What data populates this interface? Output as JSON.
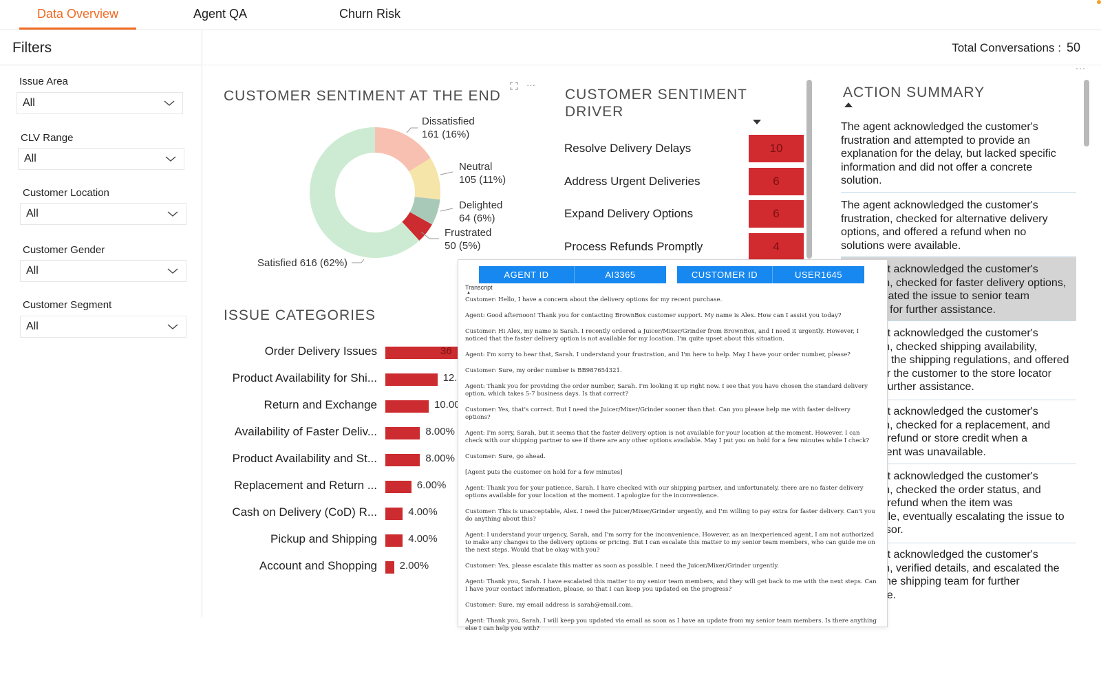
{
  "tabs": [
    {
      "label": "Data Overview",
      "active": true
    },
    {
      "label": "Agent QA",
      "active": false
    },
    {
      "label": "Churn Risk",
      "active": false
    }
  ],
  "filters": {
    "title": "Filters",
    "items": [
      {
        "label": "Issue Area",
        "value": "All"
      },
      {
        "label": "CLV Range",
        "value": "All"
      },
      {
        "label": "Customer Location",
        "value": "All"
      },
      {
        "label": "Customer Gender",
        "value": "All"
      },
      {
        "label": "Customer Segment",
        "value": "All"
      }
    ]
  },
  "header": {
    "total_label": "Total Conversations :",
    "total_value": "50"
  },
  "sentiment": {
    "title": "CUSTOMER SENTIMENT AT THE END",
    "tools": [
      "expand-icon",
      "more-icon"
    ],
    "chart_data": {
      "type": "pie",
      "style": "donut",
      "categories": [
        "Satisfied",
        "Dissatisfied",
        "Neutral",
        "Delighted",
        "Frustrated"
      ],
      "values": [
        616,
        161,
        105,
        64,
        50
      ],
      "percents": [
        62,
        16,
        11,
        6,
        5
      ],
      "colors": [
        "#cdebd3",
        "#f8c0b0",
        "#f5e5a8",
        "#a9c9b8",
        "#cc2b2f"
      ],
      "labels": [
        {
          "name": "Satisfied",
          "text": "Satisfied 616 (62%)"
        },
        {
          "name": "Dissatisfied",
          "line1": "Dissatisfied",
          "line2": "161 (16%)"
        },
        {
          "name": "Neutral",
          "line1": "Neutral",
          "line2": "105 (11%)"
        },
        {
          "name": "Delighted",
          "line1": "Delighted",
          "line2": "64 (6%)"
        },
        {
          "name": "Frustrated",
          "line1": "Frustrated",
          "line2": "50 (5%)"
        }
      ]
    }
  },
  "issues": {
    "title": "ISSUE CATEGORIES",
    "chart_data": {
      "type": "bar",
      "orientation": "horizontal",
      "categories": [
        "Order Delivery Issues",
        "Product Availability for Shi...",
        "Return and Exchange",
        "Availability of Faster Deliv...",
        "Product Availability and St...",
        "Replacement and Return ...",
        "Cash on Delivery (CoD) R...",
        "Pickup and Shipping",
        "Account and Shopping"
      ],
      "values": [
        36,
        12,
        10,
        8,
        8,
        6,
        4,
        4,
        2
      ],
      "value_labels": [
        "36",
        "12.00%",
        "10.00%",
        "8.00%",
        "8.00%",
        "6.00%",
        "4.00%",
        "4.00%",
        "2.00%"
      ],
      "color": "#cc2b2f"
    }
  },
  "driver": {
    "title_line1": "CUSTOMER SENTIMENT",
    "title_line2": "DRIVER",
    "items": [
      {
        "label": "Resolve Delivery Delays",
        "value": "10"
      },
      {
        "label": "Address Urgent Deliveries",
        "value": "6"
      },
      {
        "label": "Expand Delivery Options",
        "value": "6"
      },
      {
        "label": "Process Refunds Promptly",
        "value": "4"
      }
    ]
  },
  "summary": {
    "title": "ACTION SUMMARY",
    "items": [
      "The agent acknowledged the customer's frustration and attempted to provide an explanation for the delay, but lacked specific information and did not offer a concrete solution.",
      "The agent acknowledged the customer's frustration, checked for alternative delivery options, and offered a refund when no solutions were available.",
      "The agent acknowledged the customer's frustration, checked for faster delivery options, and escalated the issue to senior team members for further assistance.",
      "The agent acknowledged the customer's frustration, checked shipping availability, explained the shipping regulations, and offered to transfer the customer to the store locator team for further assistance.",
      "The agent acknowledged the customer's frustration, checked for a replacement, and offered a refund or store credit when a replacement was unavailable.",
      "The agent acknowledged the customer's frustration, checked the order status, and offered a refund when the item was unavailable, eventually escalating the issue to a supervisor.",
      "The agent acknowledged the customer's frustration, verified details, and escalated the issue to the shipping team for further assistance."
    ]
  },
  "popup": {
    "agent_id_label": "AGENT ID",
    "agent_id_value": "AI3365",
    "customer_id_label": "CUSTOMER ID",
    "customer_id_value": "USER1645",
    "transcript_label": "Transcript",
    "transcript": [
      "Customer: Hello, I have a concern about the delivery options for my recent purchase.",
      "Agent: Good afternoon! Thank you for contacting BrownBox customer support. My name is Alex. How can I assist you today?",
      "Customer: Hi Alex, my name is Sarah. I recently ordered a Juicer/Mixer/Grinder from BrownBox, and I need it urgently. However, I noticed that the faster delivery option is not available for my location. I'm quite upset about this situation.",
      "Agent: I'm sorry to hear that, Sarah. I understand your frustration, and I'm here to help. May I have your order number, please?",
      "Customer: Sure, my order number is BB987654321.",
      "Agent: Thank you for providing the order number, Sarah. I'm looking it up right now. I see that you have chosen the standard delivery option, which takes 5-7 business days. Is that correct?",
      "Customer: Yes, that's correct. But I need the Juicer/Mixer/Grinder sooner than that. Can you please help me with faster delivery options?",
      "Agent: I'm sorry, Sarah, but it seems that the faster delivery option is not available for your location at the moment. However, I can check with our shipping partner to see if there are any other options available. May I put you on hold for a few minutes while I check?",
      "Customer: Sure, go ahead.",
      "[Agent puts the customer on hold for a few minutes]",
      "Agent: Thank you for your patience, Sarah. I have checked with our shipping partner, and unfortunately, there are no faster delivery options available for your location at the moment. I apologize for the inconvenience.",
      "Customer: This is unacceptable, Alex. I need the Juicer/Mixer/Grinder urgently, and I'm willing to pay extra for faster delivery. Can't you do anything about this?",
      "Agent: I understand your urgency, Sarah, and I'm sorry for the inconvenience. However, as an inexperienced agent, I am not authorized to make any changes to the delivery options or pricing. But I can escalate this matter to my senior team members, who can guide me on the next steps. Would that be okay with you?",
      "Customer: Yes, please escalate this matter as soon as possible. I need the Juicer/Mixer/Grinder urgently.",
      "Agent: Thank you, Sarah. I have escalated this matter to my senior team members, and they will get back to me with the next steps. Can I have your contact information, please, so that I can keep you updated on the progress?",
      "Customer: Sure, my email address is sarah@email.com.",
      "Agent: Thank you, Sarah. I will keep you updated via email as soon as I have an update from my senior team members. Is there anything else I can help you with?"
    ]
  }
}
